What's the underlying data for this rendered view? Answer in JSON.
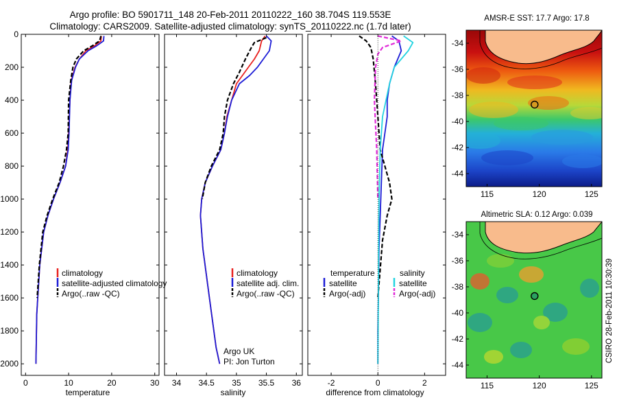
{
  "header": {
    "line1": "Argo profile: BO 5901711_148 20-Feb-2011 20110222_160 38.704S 119.553E",
    "line2": "Climatology: CARS2009. Satellite-adjusted climatology: synTS_20110222.nc (1.7d later)"
  },
  "side_label": "CSIRO 28-Feb-2011 10:30:39",
  "colors": {
    "climatology": "#e8201e",
    "satellite": "#1b1bd6",
    "argo": "#000000",
    "satellite_sal": "#22d3e0",
    "argo_sal": "#e029d8"
  },
  "chart_data": [
    {
      "type": "line",
      "xlabel": "temperature",
      "xlim": [
        -1,
        31
      ],
      "ylim": [
        2070,
        0
      ],
      "y_inverted": true,
      "xticks": [
        "0",
        "10",
        "20",
        "30"
      ],
      "yticks": [
        "0",
        "200",
        "400",
        "600",
        "800",
        "1000",
        "1200",
        "1400",
        "1600",
        "1800",
        "2000"
      ],
      "series": [
        {
          "name": "climatology",
          "color": "#e8201e",
          "dash": "solid",
          "x": [
            17.6,
            17.5,
            16,
            14,
            12.5,
            11.5,
            10.6,
            10.3,
            10.0,
            9.8,
            9.3,
            8.0,
            6.5,
            5.2,
            4.2,
            3.3,
            2.6,
            2.4
          ],
          "y": [
            10,
            40,
            70,
            100,
            150,
            200,
            280,
            400,
            600,
            700,
            800,
            900,
            1000,
            1100,
            1200,
            1400,
            1700,
            2000
          ]
        },
        {
          "name": "satellite-adjusted climatology",
          "color": "#1b1bd6",
          "dash": "solid",
          "x": [
            18.2,
            18.1,
            16.5,
            14.5,
            12.5,
            11.6,
            10.7,
            10.3,
            10.1,
            9.9,
            9.3,
            8.0,
            6.5,
            5.2,
            4.2,
            3.3,
            2.6,
            2.4
          ],
          "y": [
            10,
            40,
            70,
            100,
            150,
            200,
            280,
            400,
            600,
            700,
            800,
            900,
            1000,
            1100,
            1200,
            1400,
            1700,
            2000
          ]
        },
        {
          "name": "Argo(..raw -QC)",
          "color": "#000000",
          "dash": "dash",
          "x": [
            17.5,
            17.2,
            15.5,
            13.5,
            11.8,
            11.0,
            10.5,
            10.0,
            9.9,
            9.5,
            8.8,
            7.8,
            6.3,
            5.0,
            4.0,
            3.2,
            2.7
          ],
          "y": [
            10,
            40,
            70,
            100,
            150,
            200,
            280,
            400,
            600,
            700,
            800,
            900,
            1000,
            1100,
            1200,
            1400,
            1600
          ]
        }
      ],
      "legend": {
        "position": "lower-right",
        "labels": [
          "climatology",
          "satellite-adjusted climatology",
          "Argo(..raw -QC)"
        ]
      }
    },
    {
      "type": "line",
      "xlabel": "salinity",
      "xlim": [
        33.8,
        36.1
      ],
      "ylim": [
        2070,
        0
      ],
      "y_inverted": true,
      "xticks": [
        "34",
        "34.5",
        "35",
        "35.5",
        "36"
      ],
      "series": [
        {
          "name": "climatology",
          "color": "#e8201e",
          "dash": "solid",
          "x": [
            35.48,
            35.42,
            35.38,
            35.3,
            35.2,
            35.1,
            35.0,
            34.92,
            34.84,
            34.8,
            34.74,
            34.6,
            34.48,
            34.42,
            34.4,
            34.44,
            34.55,
            34.66,
            34.72
          ],
          "y": [
            10,
            40,
            100,
            150,
            200,
            250,
            300,
            400,
            500,
            600,
            700,
            800,
            900,
            1000,
            1100,
            1300,
            1600,
            1900,
            2000
          ]
        },
        {
          "name": "satellite adj. clim.",
          "color": "#1b1bd6",
          "dash": "solid",
          "x": [
            35.5,
            35.58,
            35.55,
            35.45,
            35.35,
            35.22,
            35.05,
            34.92,
            34.85,
            34.8,
            34.74,
            34.6,
            34.48,
            34.42,
            34.4,
            34.44,
            34.55,
            34.66,
            34.72
          ],
          "y": [
            10,
            40,
            100,
            150,
            200,
            250,
            300,
            400,
            500,
            600,
            700,
            800,
            900,
            1000,
            1100,
            1300,
            1600,
            1900,
            2000
          ]
        },
        {
          "name": "Argo(..raw -QC)",
          "color": "#000000",
          "dash": "dash",
          "x": [
            35.5,
            35.3,
            35.25,
            35.15,
            35.05,
            34.95,
            34.85,
            34.8,
            34.78,
            34.72,
            34.58,
            34.48,
            34.43
          ],
          "y": [
            20,
            50,
            80,
            150,
            230,
            300,
            400,
            500,
            600,
            700,
            800,
            900,
            1000
          ]
        }
      ],
      "legend": {
        "position": "lower-right",
        "labels": [
          "climatology",
          "satellite adj. clim.",
          "Argo(..raw -QC)"
        ]
      },
      "annotation": [
        "Argo UK",
        "PI: Jon Turton"
      ]
    },
    {
      "type": "line",
      "xlabel": "difference from climatology",
      "xlim": [
        -3.0,
        2.9
      ],
      "ylim": [
        2070,
        0
      ],
      "y_inverted": true,
      "xticks": [
        "-2",
        "0",
        "2"
      ],
      "series": [
        {
          "name": "satellite",
          "group": "temperature",
          "color": "#1b1bd6",
          "dash": "solid",
          "x": [
            0.6,
            0.9,
            1.0,
            0.7,
            0.5,
            0.4,
            0.4,
            0.3,
            0.2,
            0.15,
            0.1,
            0.05,
            0.02,
            0.0,
            0.0
          ],
          "y": [
            10,
            40,
            100,
            200,
            300,
            400,
            500,
            600,
            700,
            900,
            1100,
            1300,
            1600,
            1800,
            2000
          ]
        },
        {
          "name": "Argo(-adj)",
          "group": "temperature",
          "color": "#000000",
          "dash": "dash",
          "x": [
            -0.8,
            -0.5,
            -0.3,
            -0.2,
            -0.1,
            0.0,
            0.1,
            0.3,
            0.5,
            0.6,
            0.4,
            0.2,
            0.0
          ],
          "y": [
            10,
            40,
            80,
            150,
            300,
            500,
            700,
            800,
            900,
            1000,
            1100,
            1250,
            1600
          ]
        },
        {
          "name": "satellite",
          "group": "salinity",
          "color": "#22d3e0",
          "dash": "solid",
          "x": [
            1.1,
            1.5,
            1.3,
            1.0,
            0.7,
            0.5,
            0.35,
            0.2,
            0.1,
            0.05,
            0.0
          ],
          "y": [
            10,
            50,
            100,
            150,
            200,
            300,
            400,
            500,
            700,
            1000,
            2000
          ]
        },
        {
          "name": "Argo(-adj)",
          "group": "salinity",
          "color": "#e029d8",
          "dash": "dash",
          "x": [
            0.0,
            1.0,
            0.6,
            0.2,
            0.0,
            -0.1,
            -0.15,
            -0.05,
            0.0
          ],
          "y": [
            10,
            40,
            60,
            80,
            120,
            200,
            400,
            700,
            1000
          ]
        }
      ],
      "legend": {
        "position": "lower",
        "group_titles": [
          "temperature",
          "salinity"
        ],
        "labels": [
          "satellite",
          "Argo(-adj)",
          "satellite",
          "Argo(-adj)"
        ]
      }
    },
    {
      "type": "heatmap",
      "title": "AMSR-E SST: 17.7 Argo: 17.8",
      "xlim": [
        113,
        126
      ],
      "ylim": [
        -45,
        -33
      ],
      "xticks": [
        "115",
        "120",
        "125"
      ],
      "yticks": [
        "-34",
        "-36",
        "-38",
        "-40",
        "-42",
        "-44"
      ],
      "marker": {
        "lon": 119.553,
        "lat": -38.704
      },
      "colormap": "jet"
    },
    {
      "type": "heatmap",
      "title": "Altimetric SLA: 0.12 Argo: 0.039",
      "xlim": [
        113,
        126
      ],
      "ylim": [
        -45,
        -33
      ],
      "xticks": [
        "115",
        "120",
        "125"
      ],
      "yticks": [
        "-34",
        "-36",
        "-38",
        "-40",
        "-42",
        "-44"
      ],
      "marker": {
        "lon": 119.553,
        "lat": -38.704
      },
      "colormap": "jet"
    }
  ]
}
